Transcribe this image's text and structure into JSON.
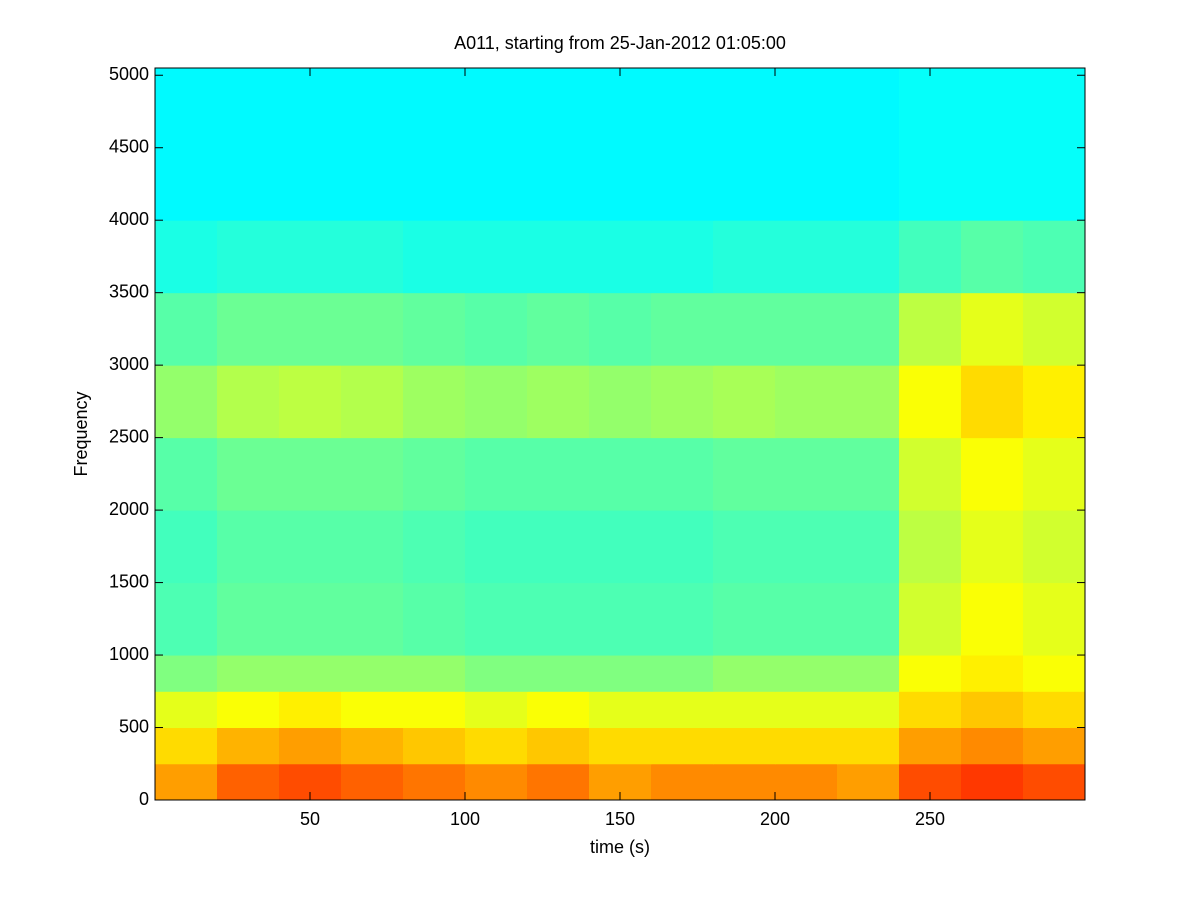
{
  "chart_data": {
    "type": "heatmap",
    "title": "A011, starting from 25-Jan-2012 01:05:00",
    "xlabel": "time (s)",
    "ylabel": "Frequency",
    "colormap": "jet",
    "clim": [
      0,
      1
    ],
    "x_edges": [
      0,
      20,
      40,
      60,
      80,
      100,
      120,
      140,
      160,
      180,
      200,
      220,
      240,
      260,
      280,
      300
    ],
    "y_edges": [
      0,
      250,
      500,
      750,
      1000,
      1500,
      2000,
      2500,
      3000,
      3500,
      4000,
      5050
    ],
    "z": [
      [
        0.72,
        0.78,
        0.8,
        0.78,
        0.76,
        0.74,
        0.76,
        0.72,
        0.74,
        0.74,
        0.74,
        0.72,
        0.8,
        0.82,
        0.8
      ],
      [
        0.66,
        0.7,
        0.72,
        0.7,
        0.68,
        0.66,
        0.68,
        0.66,
        0.66,
        0.66,
        0.66,
        0.66,
        0.72,
        0.74,
        0.72
      ],
      [
        0.6,
        0.62,
        0.64,
        0.62,
        0.62,
        0.6,
        0.62,
        0.6,
        0.6,
        0.6,
        0.6,
        0.6,
        0.66,
        0.68,
        0.66
      ],
      [
        0.5,
        0.52,
        0.52,
        0.52,
        0.52,
        0.5,
        0.5,
        0.5,
        0.5,
        0.52,
        0.52,
        0.52,
        0.62,
        0.64,
        0.62
      ],
      [
        0.45,
        0.47,
        0.47,
        0.47,
        0.46,
        0.45,
        0.45,
        0.45,
        0.45,
        0.46,
        0.46,
        0.46,
        0.58,
        0.62,
        0.6
      ],
      [
        0.44,
        0.46,
        0.46,
        0.46,
        0.45,
        0.44,
        0.44,
        0.44,
        0.44,
        0.45,
        0.45,
        0.45,
        0.56,
        0.6,
        0.58
      ],
      [
        0.46,
        0.48,
        0.48,
        0.48,
        0.47,
        0.46,
        0.46,
        0.46,
        0.46,
        0.47,
        0.47,
        0.47,
        0.58,
        0.62,
        0.6
      ],
      [
        0.52,
        0.55,
        0.56,
        0.55,
        0.53,
        0.52,
        0.53,
        0.52,
        0.53,
        0.54,
        0.53,
        0.53,
        0.62,
        0.66,
        0.64
      ],
      [
        0.46,
        0.48,
        0.48,
        0.48,
        0.47,
        0.46,
        0.47,
        0.46,
        0.47,
        0.47,
        0.47,
        0.47,
        0.56,
        0.6,
        0.58
      ],
      [
        0.4,
        0.41,
        0.41,
        0.41,
        0.4,
        0.4,
        0.4,
        0.4,
        0.4,
        0.41,
        0.41,
        0.41,
        0.44,
        0.46,
        0.45
      ],
      [
        0.37,
        0.37,
        0.37,
        0.37,
        0.37,
        0.37,
        0.37,
        0.37,
        0.37,
        0.37,
        0.37,
        0.37,
        0.38,
        0.38,
        0.38
      ]
    ],
    "xlim": [
      0,
      300
    ],
    "ylim": [
      0,
      5050
    ],
    "xticks": [
      50,
      100,
      150,
      200,
      250
    ],
    "yticks": [
      0,
      500,
      1000,
      1500,
      2000,
      2500,
      3000,
      3500,
      4000,
      4500,
      5000
    ]
  }
}
